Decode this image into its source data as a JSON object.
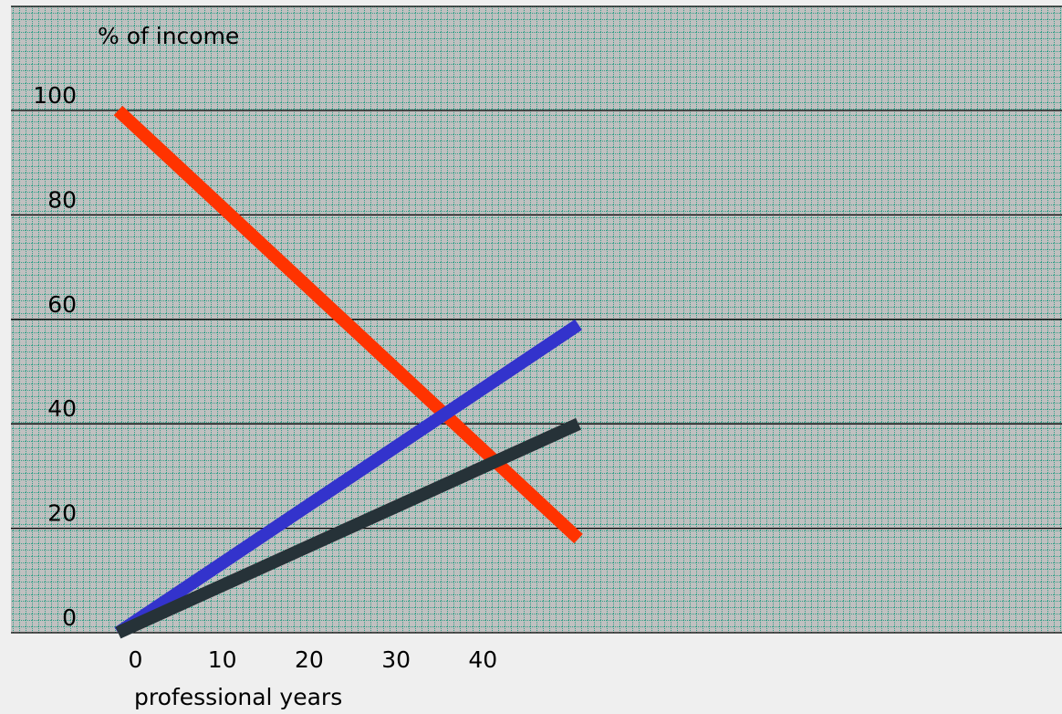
{
  "chart_data": {
    "type": "line",
    "ylabel": "% of income",
    "xlabel": "professional years",
    "x_ticks": [
      "0",
      "10",
      "20",
      "30",
      "40"
    ],
    "y_ticks": [
      "100",
      "80",
      "60",
      "40",
      "20",
      "0"
    ],
    "xlim": [
      -2,
      51
    ],
    "series": [
      {
        "color": "#ff3300",
        "x": [
          -2,
          51
        ],
        "y": [
          100,
          18
        ]
      },
      {
        "color": "#3333cc",
        "x": [
          -2,
          51
        ],
        "y": [
          0,
          59
        ]
      },
      {
        "color": "#263238",
        "x": [
          -2,
          51
        ],
        "y": [
          0,
          40
        ]
      }
    ],
    "grid": true
  },
  "colors": {
    "plot_background": "#c0c0c0",
    "grid_dots": "#2f9f87",
    "page_background": "#efefef"
  }
}
